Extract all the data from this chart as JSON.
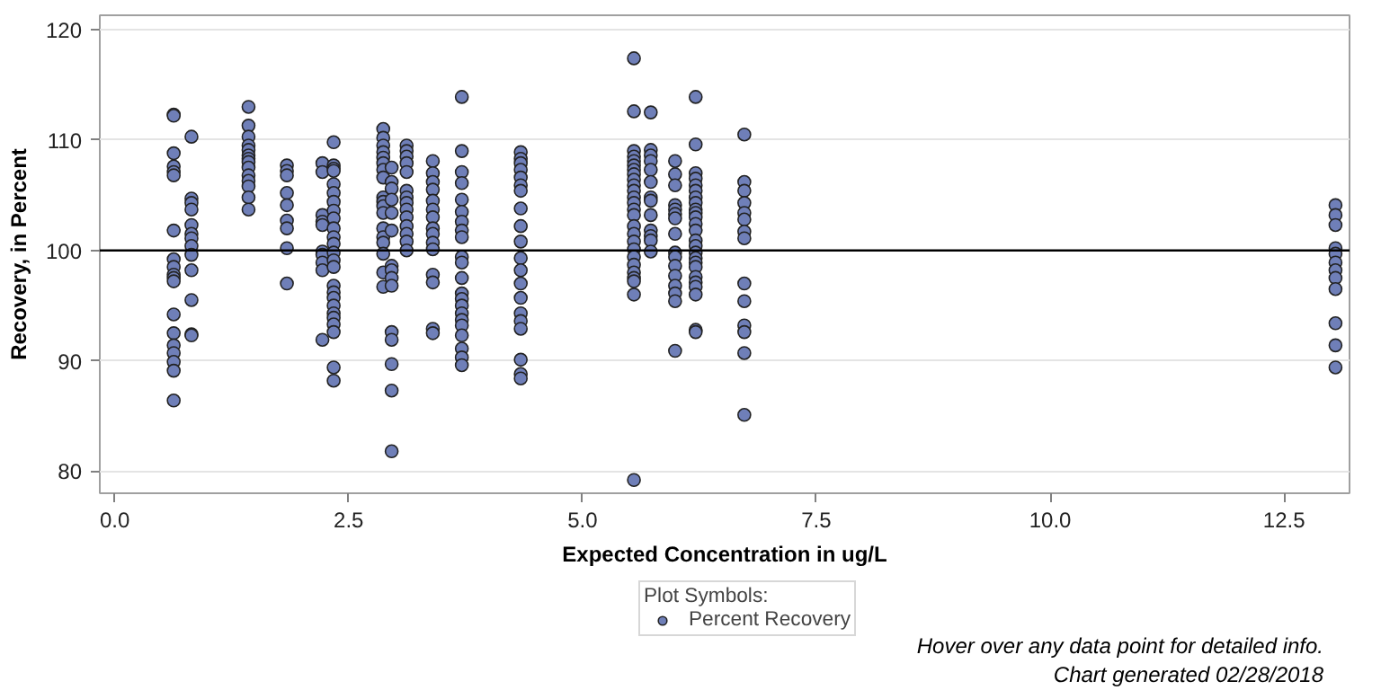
{
  "chart_data": {
    "type": "scatter",
    "xlabel": "Expected Concentration in ug/L",
    "ylabel": "Recovery, in Percent",
    "legend_title": "Plot Symbols:",
    "xlim": [
      -0.16,
      13.2
    ],
    "ylim": [
      78,
      121.3
    ],
    "xticks": [
      {
        "value": 0,
        "label": "0.0"
      },
      2.5,
      {
        "value": 5,
        "label": "5.0"
      },
      7.5,
      {
        "value": 10,
        "label": "10.0"
      },
      12.5
    ],
    "yticks": [
      80,
      90,
      100,
      110,
      120
    ],
    "grid": "y",
    "legend": "bottom",
    "marker": "circle",
    "ref_lines": [
      {
        "axis": "y",
        "value": 100,
        "color": "#000000"
      }
    ],
    "annotations": [
      "Hover over any data point for detailed info.",
      "Chart generated 02/28/2018"
    ],
    "series": [
      {
        "name": "Percent Recovery",
        "color": "#6f7fb8",
        "x": [
          0.63,
          0.63,
          0.63,
          0.63,
          0.63,
          0.63,
          0.63,
          0.63,
          0.63,
          0.63,
          0.63,
          0.63,
          0.63,
          0.63,
          0.63,
          0.63,
          0.63,
          0.63,
          0.63,
          0.82,
          0.82,
          0.82,
          0.82,
          0.82,
          0.82,
          0.82,
          0.82,
          0.82,
          0.82,
          0.82,
          0.82,
          0.82,
          1.43,
          1.43,
          1.43,
          1.43,
          1.43,
          1.43,
          1.43,
          1.43,
          1.43,
          1.43,
          1.43,
          1.43,
          1.43,
          1.43,
          1.84,
          1.84,
          1.84,
          1.84,
          1.84,
          1.84,
          1.84,
          1.84,
          1.84,
          2.22,
          2.22,
          2.22,
          2.22,
          2.22,
          2.22,
          2.22,
          2.22,
          2.22,
          2.22,
          2.34,
          2.34,
          2.34,
          2.34,
          2.34,
          2.34,
          2.34,
          2.34,
          2.34,
          2.34,
          2.34,
          2.34,
          2.34,
          2.34,
          2.34,
          2.34,
          2.34,
          2.34,
          2.34,
          2.34,
          2.34,
          2.34,
          2.34,
          2.34,
          2.34,
          2.87,
          2.87,
          2.87,
          2.87,
          2.87,
          2.87,
          2.87,
          2.87,
          2.87,
          2.87,
          2.87,
          2.87,
          2.87,
          2.87,
          2.87,
          2.87,
          2.87,
          2.87,
          2.96,
          2.96,
          2.96,
          2.96,
          2.96,
          2.96,
          2.96,
          2.96,
          2.96,
          2.96,
          2.96,
          2.96,
          2.96,
          2.96,
          2.96,
          3.12,
          3.12,
          3.12,
          3.12,
          3.12,
          3.12,
          3.12,
          3.12,
          3.12,
          3.12,
          3.12,
          3.12,
          3.12,
          3.12,
          3.4,
          3.4,
          3.4,
          3.4,
          3.4,
          3.4,
          3.4,
          3.4,
          3.4,
          3.4,
          3.4,
          3.4,
          3.4,
          3.4,
          3.4,
          3.71,
          3.71,
          3.71,
          3.71,
          3.71,
          3.71,
          3.71,
          3.71,
          3.71,
          3.71,
          3.71,
          3.71,
          3.71,
          3.71,
          3.71,
          3.71,
          3.71,
          3.71,
          3.71,
          3.71,
          3.71,
          3.71,
          4.34,
          4.34,
          4.34,
          4.34,
          4.34,
          4.34,
          4.34,
          4.34,
          4.34,
          4.34,
          4.34,
          4.34,
          4.34,
          4.34,
          4.34,
          4.34,
          4.34,
          4.34,
          4.34,
          4.34,
          5.55,
          5.55,
          5.55,
          5.55,
          5.55,
          5.55,
          5.55,
          5.55,
          5.55,
          5.55,
          5.55,
          5.55,
          5.55,
          5.55,
          5.55,
          5.55,
          5.55,
          5.55,
          5.55,
          5.55,
          5.55,
          5.55,
          5.55,
          5.55,
          5.55,
          5.55,
          5.73,
          5.73,
          5.73,
          5.73,
          5.73,
          5.73,
          5.73,
          5.73,
          5.73,
          5.73,
          5.73,
          5.73,
          5.73,
          5.99,
          5.99,
          5.99,
          5.99,
          5.99,
          5.99,
          5.99,
          5.99,
          5.99,
          5.99,
          5.99,
          5.99,
          5.99,
          5.99,
          5.99,
          5.99,
          6.21,
          6.21,
          6.21,
          6.21,
          6.21,
          6.21,
          6.21,
          6.21,
          6.21,
          6.21,
          6.21,
          6.21,
          6.21,
          6.21,
          6.21,
          6.21,
          6.21,
          6.21,
          6.21,
          6.21,
          6.21,
          6.21,
          6.21,
          6.21,
          6.21,
          6.73,
          6.73,
          6.73,
          6.73,
          6.73,
          6.73,
          6.73,
          6.73,
          6.73,
          6.73,
          6.73,
          6.73,
          6.73,
          6.73,
          13.05,
          13.05,
          13.05,
          13.05,
          13.05,
          13.05,
          13.05,
          13.05,
          13.05,
          13.05,
          13.05,
          13.05
        ],
        "values": [
          112.3,
          112.2,
          108.8,
          107.6,
          107.1,
          106.8,
          101.8,
          99.2,
          98.5,
          97.8,
          97.5,
          97.2,
          94.2,
          92.5,
          91.4,
          90.7,
          89.9,
          89.1,
          86.4,
          110.3,
          104.7,
          104.3,
          103.7,
          102.3,
          101.5,
          101.1,
          100.4,
          99.6,
          98.2,
          95.5,
          92.4,
          92.3,
          113.0,
          111.3,
          110.3,
          109.5,
          109.1,
          108.6,
          108.3,
          108.0,
          107.5,
          106.8,
          106.3,
          105.8,
          104.8,
          103.7,
          107.7,
          107.2,
          106.8,
          105.2,
          104.1,
          102.7,
          102.0,
          100.2,
          97.0,
          107.9,
          107.1,
          103.2,
          102.6,
          102.3,
          99.9,
          99.6,
          98.9,
          98.2,
          91.9,
          109.8,
          107.7,
          107.4,
          107.2,
          106.0,
          105.2,
          104.4,
          103.6,
          102.9,
          102.0,
          101.2,
          100.6,
          99.8,
          99.1,
          98.5,
          96.8,
          96.2,
          95.7,
          95.0,
          94.3,
          93.9,
          93.3,
          92.6,
          89.4,
          88.2,
          111.0,
          110.2,
          109.5,
          108.9,
          108.4,
          107.9,
          107.3,
          106.6,
          104.8,
          104.4,
          104.0,
          103.4,
          102.0,
          101.2,
          100.7,
          99.7,
          98.0,
          96.7,
          107.5,
          106.2,
          105.6,
          104.6,
          103.4,
          101.8,
          98.6,
          98.2,
          97.5,
          96.8,
          92.6,
          91.9,
          89.7,
          87.3,
          81.8,
          109.5,
          109.0,
          108.5,
          107.9,
          107.1,
          105.4,
          104.8,
          104.3,
          103.7,
          103.0,
          102.2,
          101.5,
          100.8,
          100.0,
          108.1,
          107.0,
          106.2,
          105.5,
          104.5,
          103.7,
          103.0,
          102.0,
          101.5,
          100.7,
          100.1,
          97.8,
          97.1,
          92.9,
          92.5,
          113.9,
          109.0,
          107.1,
          106.1,
          104.6,
          103.5,
          102.6,
          101.8,
          101.2,
          99.4,
          98.9,
          97.5,
          96.1,
          95.6,
          95.0,
          94.3,
          93.7,
          93.2,
          92.3,
          91.1,
          90.3,
          89.6,
          108.9,
          108.3,
          107.9,
          107.3,
          106.6,
          105.9,
          105.4,
          103.8,
          102.2,
          100.8,
          99.3,
          98.2,
          97.0,
          95.7,
          94.3,
          93.6,
          92.9,
          90.1,
          88.8,
          88.4,
          117.4,
          112.6,
          109.0,
          108.5,
          108.1,
          107.7,
          107.3,
          106.9,
          106.4,
          105.9,
          105.4,
          104.8,
          104.3,
          103.7,
          103.2,
          102.2,
          101.5,
          100.8,
          100.1,
          99.4,
          98.7,
          98.0,
          97.5,
          97.2,
          96.0,
          79.2,
          112.5,
          109.1,
          108.6,
          108.1,
          107.3,
          106.2,
          104.8,
          104.5,
          103.2,
          101.8,
          101.3,
          100.9,
          99.9,
          108.1,
          106.9,
          105.9,
          104.1,
          103.7,
          103.3,
          102.9,
          101.5,
          99.8,
          99.4,
          98.6,
          97.7,
          96.8,
          96.1,
          95.4,
          90.9,
          113.9,
          109.6,
          107.0,
          106.5,
          105.9,
          105.4,
          104.8,
          104.3,
          103.7,
          103.4,
          103.0,
          102.4,
          101.8,
          100.9,
          100.4,
          99.8,
          99.3,
          98.9,
          98.5,
          97.6,
          97.1,
          96.7,
          96.0,
          92.8,
          92.6,
          110.5,
          106.2,
          105.4,
          104.3,
          103.4,
          102.8,
          101.7,
          101.1,
          97.0,
          95.4,
          93.2,
          92.6,
          90.7,
          85.1,
          104.1,
          103.2,
          102.3,
          100.2,
          99.7,
          98.9,
          98.2,
          97.5,
          96.5,
          93.4,
          91.4,
          89.4
        ]
      }
    ]
  }
}
